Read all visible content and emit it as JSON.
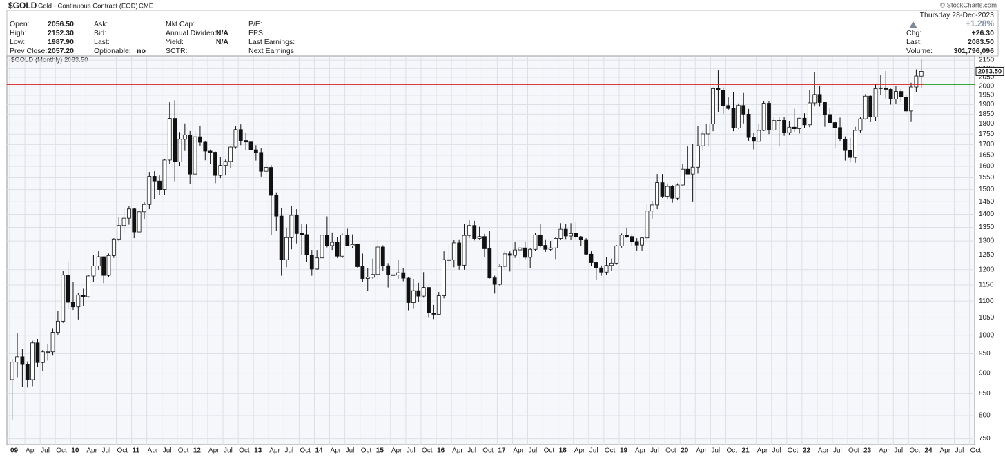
{
  "header": {
    "symbol": "$GOLD",
    "name": "Gold - Continuous Contract (EOD)",
    "exchange": "CME",
    "credit": "© StockCharts.com",
    "date": "Thursday  28-Dec-2023",
    "pct_change": "+1.28%",
    "columns": [
      [
        {
          "label": "Open:",
          "value": "2056.50"
        },
        {
          "label": "High:",
          "value": "2152.30"
        },
        {
          "label": "Low:",
          "value": "1987.90"
        },
        {
          "label": "Prev Close:",
          "value": "2057.20"
        }
      ],
      [
        {
          "label": "Ask:"
        },
        {
          "label": "Bid:"
        },
        {
          "label": "Last:"
        },
        {
          "label": "Optionable:",
          "value": "no"
        }
      ],
      [
        {
          "label": "Mkt Cap:"
        },
        {
          "label": "Annual Dividend:",
          "value": "N/A"
        },
        {
          "label": "Yield:",
          "value": "N/A"
        },
        {
          "label": "SCTR:"
        }
      ],
      [
        {
          "label": "P/E:"
        },
        {
          "label": "EPS:"
        },
        {
          "label": "Last Earnings:"
        },
        {
          "label": "Next Earnings:"
        }
      ]
    ],
    "right_rows": [
      {
        "label": "Chg:",
        "value": "+26.30"
      },
      {
        "label": "Last:",
        "value": "2083.50"
      },
      {
        "label": "Volume:",
        "value": "301,796,096"
      }
    ]
  },
  "chart_data": {
    "type": "candlestick",
    "legend": "$GOLD (Monthly) 2083.50",
    "last_label": "2083.50",
    "log_scale": true,
    "grid": true,
    "up_color": "#ffffff",
    "down_color": "#111111",
    "hline": {
      "value": 2010,
      "color": "#d62020",
      "right_color": "#1a9a1a"
    },
    "ylim": [
      738,
      2171
    ],
    "yticks": [
      750,
      800,
      850,
      900,
      950,
      1000,
      1050,
      1100,
      1150,
      1200,
      1250,
      1300,
      1350,
      1400,
      1450,
      1500,
      1550,
      1600,
      1650,
      1700,
      1750,
      1800,
      1850,
      1900,
      1950,
      2000,
      2050,
      2100,
      2150
    ],
    "xlim": [
      "2009-01",
      "2024-10"
    ],
    "xticks": [
      {
        "value": "2009-01",
        "label": "09"
      },
      {
        "value": "2009-04",
        "label": "Apr"
      },
      {
        "value": "2009-07",
        "label": "Jul"
      },
      {
        "value": "2009-10",
        "label": "Oct"
      },
      {
        "value": "2010-01",
        "label": "10"
      },
      {
        "value": "2010-04",
        "label": "Apr"
      },
      {
        "value": "2010-07",
        "label": "Jul"
      },
      {
        "value": "2010-10",
        "label": "Oct"
      },
      {
        "value": "2011-01",
        "label": "11"
      },
      {
        "value": "2011-04",
        "label": "Apr"
      },
      {
        "value": "2011-07",
        "label": "Jul"
      },
      {
        "value": "2011-10",
        "label": "Oct"
      },
      {
        "value": "2012-01",
        "label": "12"
      },
      {
        "value": "2012-04",
        "label": "Apr"
      },
      {
        "value": "2012-07",
        "label": "Jul"
      },
      {
        "value": "2012-10",
        "label": "Oct"
      },
      {
        "value": "2013-01",
        "label": "13"
      },
      {
        "value": "2013-04",
        "label": "Apr"
      },
      {
        "value": "2013-07",
        "label": "Jul"
      },
      {
        "value": "2013-10",
        "label": "Oct"
      },
      {
        "value": "2014-01",
        "label": "14"
      },
      {
        "value": "2014-04",
        "label": "Apr"
      },
      {
        "value": "2014-07",
        "label": "Jul"
      },
      {
        "value": "2014-10",
        "label": "Oct"
      },
      {
        "value": "2015-01",
        "label": "15"
      },
      {
        "value": "2015-04",
        "label": "Apr"
      },
      {
        "value": "2015-07",
        "label": "Jul"
      },
      {
        "value": "2015-10",
        "label": "Oct"
      },
      {
        "value": "2016-01",
        "label": "16"
      },
      {
        "value": "2016-04",
        "label": "Apr"
      },
      {
        "value": "2016-07",
        "label": "Jul"
      },
      {
        "value": "2016-10",
        "label": "Oct"
      },
      {
        "value": "2017-01",
        "label": "17"
      },
      {
        "value": "2017-04",
        "label": "Apr"
      },
      {
        "value": "2017-07",
        "label": "Jul"
      },
      {
        "value": "2017-10",
        "label": "Oct"
      },
      {
        "value": "2018-01",
        "label": "18"
      },
      {
        "value": "2018-04",
        "label": "Apr"
      },
      {
        "value": "2018-07",
        "label": "Jul"
      },
      {
        "value": "2018-10",
        "label": "Oct"
      },
      {
        "value": "2019-01",
        "label": "19"
      },
      {
        "value": "2019-04",
        "label": "Apr"
      },
      {
        "value": "2019-07",
        "label": "Jul"
      },
      {
        "value": "2019-10",
        "label": "Oct"
      },
      {
        "value": "2020-01",
        "label": "20"
      },
      {
        "value": "2020-04",
        "label": "Apr"
      },
      {
        "value": "2020-07",
        "label": "Jul"
      },
      {
        "value": "2020-10",
        "label": "Oct"
      },
      {
        "value": "2021-01",
        "label": "21"
      },
      {
        "value": "2021-04",
        "label": "Apr"
      },
      {
        "value": "2021-07",
        "label": "Jul"
      },
      {
        "value": "2021-10",
        "label": "Oct"
      },
      {
        "value": "2022-01",
        "label": "22"
      },
      {
        "value": "2022-04",
        "label": "Apr"
      },
      {
        "value": "2022-07",
        "label": "Jul"
      },
      {
        "value": "2022-10",
        "label": "Oct"
      },
      {
        "value": "2023-01",
        "label": "23"
      },
      {
        "value": "2023-04",
        "label": "Apr"
      },
      {
        "value": "2023-07",
        "label": "Jul"
      },
      {
        "value": "2023-10",
        "label": "Oct"
      },
      {
        "value": "2024-01",
        "label": "24"
      },
      {
        "value": "2024-04",
        "label": "Apr"
      },
      {
        "value": "2024-07",
        "label": "Jul"
      },
      {
        "value": "2024-10",
        "label": "Oct"
      }
    ],
    "x": [
      "2009-01",
      "2009-02",
      "2009-03",
      "2009-04",
      "2009-05",
      "2009-06",
      "2009-07",
      "2009-08",
      "2009-09",
      "2009-10",
      "2009-11",
      "2009-12",
      "2010-01",
      "2010-02",
      "2010-03",
      "2010-04",
      "2010-05",
      "2010-06",
      "2010-07",
      "2010-08",
      "2010-09",
      "2010-10",
      "2010-11",
      "2010-12",
      "2011-01",
      "2011-02",
      "2011-03",
      "2011-04",
      "2011-05",
      "2011-06",
      "2011-07",
      "2011-08",
      "2011-09",
      "2011-10",
      "2011-11",
      "2011-12",
      "2012-01",
      "2012-02",
      "2012-03",
      "2012-04",
      "2012-05",
      "2012-06",
      "2012-07",
      "2012-08",
      "2012-09",
      "2012-10",
      "2012-11",
      "2012-12",
      "2013-01",
      "2013-02",
      "2013-03",
      "2013-04",
      "2013-05",
      "2013-06",
      "2013-07",
      "2013-08",
      "2013-09",
      "2013-10",
      "2013-11",
      "2013-12",
      "2014-01",
      "2014-02",
      "2014-03",
      "2014-04",
      "2014-05",
      "2014-06",
      "2014-07",
      "2014-08",
      "2014-09",
      "2014-10",
      "2014-11",
      "2014-12",
      "2015-01",
      "2015-02",
      "2015-03",
      "2015-04",
      "2015-05",
      "2015-06",
      "2015-07",
      "2015-08",
      "2015-09",
      "2015-10",
      "2015-11",
      "2015-12",
      "2016-01",
      "2016-02",
      "2016-03",
      "2016-04",
      "2016-05",
      "2016-06",
      "2016-07",
      "2016-08",
      "2016-09",
      "2016-10",
      "2016-11",
      "2016-12",
      "2017-01",
      "2017-02",
      "2017-03",
      "2017-04",
      "2017-05",
      "2017-06",
      "2017-07",
      "2017-08",
      "2017-09",
      "2017-10",
      "2017-11",
      "2017-12",
      "2018-01",
      "2018-02",
      "2018-03",
      "2018-04",
      "2018-05",
      "2018-06",
      "2018-07",
      "2018-08",
      "2018-09",
      "2018-10",
      "2018-11",
      "2018-12",
      "2019-01",
      "2019-02",
      "2019-03",
      "2019-04",
      "2019-05",
      "2019-06",
      "2019-07",
      "2019-08",
      "2019-09",
      "2019-10",
      "2019-11",
      "2019-12",
      "2020-01",
      "2020-02",
      "2020-03",
      "2020-04",
      "2020-05",
      "2020-06",
      "2020-07",
      "2020-08",
      "2020-09",
      "2020-10",
      "2020-11",
      "2020-12",
      "2021-01",
      "2021-02",
      "2021-03",
      "2021-04",
      "2021-05",
      "2021-06",
      "2021-07",
      "2021-08",
      "2021-09",
      "2021-10",
      "2021-11",
      "2021-12",
      "2022-01",
      "2022-02",
      "2022-03",
      "2022-04",
      "2022-05",
      "2022-06",
      "2022-07",
      "2022-08",
      "2022-09",
      "2022-10",
      "2022-11",
      "2022-12",
      "2023-01",
      "2023-02",
      "2023-03",
      "2023-04",
      "2023-05",
      "2023-06",
      "2023-07",
      "2023-08",
      "2023-09",
      "2023-10",
      "2023-11",
      "2023-12"
    ],
    "open": [
      884,
      928,
      942,
      922,
      884,
      979,
      927,
      955,
      955,
      1008,
      1040,
      1182,
      1096,
      1082,
      1118,
      1113,
      1179,
      1212,
      1244,
      1181,
      1248,
      1307,
      1357,
      1385,
      1421,
      1333,
      1410,
      1439,
      1556,
      1536,
      1500,
      1628,
      1828,
      1620,
      1725,
      1746,
      1566,
      1737,
      1711,
      1669,
      1664,
      1560,
      1604,
      1622,
      1688,
      1772,
      1719,
      1712,
      1675,
      1663,
      1578,
      1595,
      1476,
      1393,
      1234,
      1312,
      1396,
      1327,
      1323,
      1250,
      1202,
      1240,
      1321,
      1283,
      1295,
      1246,
      1322,
      1282,
      1287,
      1210,
      1171,
      1175,
      1184,
      1278,
      1213,
      1183,
      1182,
      1190,
      1172,
      1095,
      1132,
      1115,
      1142,
      1064,
      1060,
      1116,
      1234,
      1233,
      1293,
      1215,
      1320,
      1357,
      1309,
      1316,
      1272,
      1173,
      1152,
      1211,
      1254,
      1249,
      1268,
      1275,
      1242,
      1270,
      1322,
      1284,
      1270,
      1275,
      1309,
      1343,
      1318,
      1327,
      1315,
      1305,
      1253,
      1224,
      1206,
      1192,
      1214,
      1222,
      1282,
      1321,
      1316,
      1298,
      1285,
      1311,
      1413,
      1437,
      1529,
      1472,
      1513,
      1464,
      1519,
      1587,
      1566,
      1596,
      1694,
      1751,
      1800,
      1986,
      1978,
      1895,
      1879,
      1780,
      1895,
      1850,
      1734,
      1715,
      1768,
      1907,
      1770,
      1817,
      1818,
      1757,
      1784,
      1776,
      1829,
      1796,
      1909,
      1954,
      1911,
      1848,
      1807,
      1782,
      1726,
      1672,
      1640,
      1768,
      1826,
      1945,
      1836,
      1986,
      1990,
      1982,
      1929,
      1970,
      1940,
      1866,
      1995,
      2056.5
    ],
    "high": [
      936,
      1006,
      962,
      930,
      985,
      990,
      960,
      975,
      1020,
      1070,
      1195,
      1227,
      1160,
      1126,
      1140,
      1182,
      1250,
      1265,
      1245,
      1255,
      1310,
      1388,
      1425,
      1432,
      1425,
      1412,
      1448,
      1575,
      1578,
      1560,
      1632,
      1912,
      1923,
      1760,
      1803,
      1765,
      1764,
      1792,
      1718,
      1676,
      1667,
      1641,
      1630,
      1694,
      1790,
      1798,
      1755,
      1726,
      1697,
      1683,
      1617,
      1605,
      1488,
      1425,
      1348,
      1434,
      1420,
      1362,
      1361,
      1268,
      1268,
      1345,
      1392,
      1331,
      1315,
      1327,
      1345,
      1324,
      1287,
      1255,
      1205,
      1238,
      1307,
      1284,
      1222,
      1225,
      1232,
      1205,
      1175,
      1170,
      1157,
      1192,
      1142,
      1088,
      1128,
      1263,
      1287,
      1305,
      1306,
      1362,
      1377,
      1375,
      1352,
      1326,
      1337,
      1180,
      1220,
      1264,
      1263,
      1297,
      1285,
      1296,
      1274,
      1330,
      1362,
      1306,
      1300,
      1315,
      1366,
      1362,
      1366,
      1369,
      1318,
      1310,
      1263,
      1228,
      1214,
      1243,
      1238,
      1285,
      1327,
      1349,
      1325,
      1310,
      1314,
      1442,
      1453,
      1566,
      1566,
      1526,
      1519,
      1526,
      1611,
      1691,
      1704,
      1789,
      1765,
      1802,
      1992,
      2089,
      1993,
      1938,
      1966,
      1906,
      1962,
      1877,
      1758,
      1799,
      1917,
      1919,
      1836,
      1834,
      1835,
      1814,
      1878,
      1831,
      1854,
      1976,
      2078,
      2003,
      1910,
      1880,
      1814,
      1832,
      1739,
      1732,
      1786,
      1834,
      1956,
      1949,
      2010,
      2063,
      2085,
      1986,
      2002,
      1985,
      1954,
      2019,
      2095,
      2152.3
    ],
    "low": [
      790,
      890,
      866,
      865,
      868,
      915,
      905,
      932,
      945,
      1000,
      1035,
      1075,
      1073,
      1045,
      1085,
      1110,
      1160,
      1200,
      1156,
      1175,
      1240,
      1300,
      1330,
      1360,
      1310,
      1330,
      1380,
      1420,
      1460,
      1478,
      1478,
      1610,
      1535,
      1600,
      1670,
      1523,
      1560,
      1695,
      1627,
      1611,
      1527,
      1548,
      1560,
      1592,
      1680,
      1697,
      1672,
      1636,
      1626,
      1555,
      1563,
      1321,
      1338,
      1180,
      1208,
      1270,
      1291,
      1251,
      1227,
      1180,
      1200,
      1238,
      1277,
      1268,
      1240,
      1240,
      1282,
      1273,
      1206,
      1160,
      1131,
      1170,
      1167,
      1197,
      1142,
      1168,
      1170,
      1162,
      1072,
      1078,
      1098,
      1110,
      1052,
      1046,
      1062,
      1108,
      1208,
      1208,
      1200,
      1200,
      1310,
      1302,
      1306,
      1242,
      1171,
      1123,
      1147,
      1201,
      1194,
      1240,
      1214,
      1236,
      1205,
      1265,
      1277,
      1261,
      1266,
      1236,
      1303,
      1307,
      1303,
      1304,
      1281,
      1251,
      1211,
      1167,
      1180,
      1182,
      1196,
      1217,
      1276,
      1311,
      1281,
      1266,
      1266,
      1306,
      1383,
      1420,
      1465,
      1460,
      1446,
      1456,
      1517,
      1565,
      1451,
      1568,
      1676,
      1690,
      1764,
      1862,
      1851,
      1870,
      1764,
      1776,
      1803,
      1717,
      1677,
      1723,
      1765,
      1750,
      1765,
      1690,
      1742,
      1746,
      1761,
      1753,
      1780,
      1784,
      1890,
      1889,
      1786,
      1805,
      1681,
      1714,
      1626,
      1618,
      1616,
      1758,
      1822,
      1809,
      1813,
      1951,
      1932,
      1900,
      1903,
      1913,
      1860,
      1810,
      1965,
      1987.9
    ],
    "close": [
      928,
      942,
      922,
      884,
      979,
      927,
      955,
      955,
      1008,
      1040,
      1182,
      1096,
      1082,
      1118,
      1113,
      1179,
      1212,
      1244,
      1181,
      1248,
      1307,
      1357,
      1385,
      1421,
      1333,
      1410,
      1439,
      1556,
      1536,
      1500,
      1628,
      1828,
      1620,
      1725,
      1746,
      1566,
      1737,
      1711,
      1669,
      1664,
      1560,
      1604,
      1622,
      1688,
      1772,
      1719,
      1712,
      1675,
      1663,
      1578,
      1595,
      1476,
      1393,
      1234,
      1312,
      1396,
      1327,
      1323,
      1250,
      1202,
      1240,
      1321,
      1283,
      1295,
      1246,
      1322,
      1282,
      1287,
      1210,
      1171,
      1175,
      1184,
      1278,
      1213,
      1183,
      1182,
      1190,
      1172,
      1095,
      1132,
      1115,
      1142,
      1064,
      1060,
      1116,
      1234,
      1233,
      1293,
      1215,
      1320,
      1357,
      1309,
      1316,
      1272,
      1173,
      1152,
      1211,
      1254,
      1249,
      1268,
      1275,
      1242,
      1270,
      1322,
      1284,
      1270,
      1275,
      1309,
      1343,
      1318,
      1327,
      1315,
      1305,
      1253,
      1224,
      1206,
      1192,
      1214,
      1222,
      1282,
      1321,
      1316,
      1298,
      1285,
      1311,
      1413,
      1437,
      1529,
      1472,
      1513,
      1464,
      1519,
      1587,
      1566,
      1596,
      1694,
      1751,
      1800,
      1986,
      1978,
      1895,
      1879,
      1780,
      1895,
      1850,
      1734,
      1715,
      1768,
      1907,
      1770,
      1817,
      1818,
      1757,
      1784,
      1776,
      1829,
      1796,
      1909,
      1954,
      1911,
      1848,
      1807,
      1782,
      1726,
      1672,
      1640,
      1768,
      1826,
      1945,
      1836,
      1986,
      1990,
      1982,
      1929,
      1970,
      1940,
      1866,
      1995,
      2057,
      2083.5
    ]
  }
}
